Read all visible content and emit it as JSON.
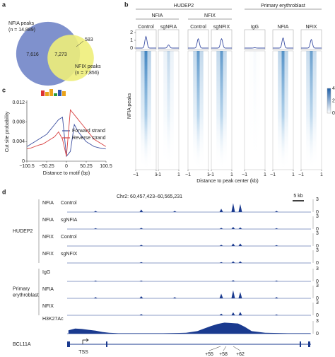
{
  "chart_data": [
    {
      "type": "venn",
      "panel_label": "a",
      "sets": [
        {
          "name": "NFIA peaks",
          "n": 14889,
          "n_label": "(n = 14,889)",
          "color": "#7f91cd"
        },
        {
          "name": "NFIX peaks",
          "n": 7856,
          "n_label": "(n = 7,856)",
          "color": "#eeee7a"
        }
      ],
      "values": [
        7616,
        7273,
        583
      ],
      "value_labels": [
        "7,616",
        "7,273",
        "583"
      ]
    },
    {
      "type": "heatmap_profile",
      "panel_label": "b",
      "groups": [
        {
          "name": "HUDEP2",
          "subgroups": [
            {
              "name": "NFIA",
              "columns": [
                {
                  "name": "Control",
                  "peak": 1.5
                },
                {
                  "name": "sgNFIA",
                  "peak": 0.4
                }
              ]
            },
            {
              "name": "NFIX",
              "columns": [
                {
                  "name": "Control",
                  "peak": 1.2
                },
                {
                  "name": "sgNFIX",
                  "peak": 1.2
                }
              ]
            }
          ]
        },
        {
          "name": "Primary erythroblast",
          "subgroups": [
            {
              "columns": [
                {
                  "name": "IgG",
                  "peak": 0.05
                },
                {
                  "name": "NFIA",
                  "peak": 1.3
                },
                {
                  "name": "NFIX",
                  "peak": 1.1
                }
              ]
            }
          ]
        }
      ],
      "ylim": [
        0,
        2
      ],
      "yticks": [
        0,
        1,
        2
      ],
      "xlim": [
        -1,
        1
      ],
      "xticks": [
        {
          "value": -1,
          "label": "−1"
        },
        1
      ],
      "ylabel": "NFIA peaks",
      "xlabel": "Distance to peak center (kb)",
      "color": "#1f6fb5",
      "clim": [
        0,
        4
      ],
      "colorbar_ticks": [
        4,
        2,
        0
      ]
    },
    {
      "type": "line",
      "panel_label": "c",
      "xlabel": "Distance to motif (bp)",
      "ylabel": "Cut site probability",
      "x": [
        -100,
        -90,
        -80,
        -70,
        -60,
        -50,
        -40,
        -30,
        -20,
        -10,
        0,
        10,
        20,
        30,
        40,
        50,
        60,
        70,
        80,
        90,
        100
      ],
      "xlim": [
        -100.5,
        100.5
      ],
      "xticks": [
        {
          "value": -100.5,
          "label": "−100.5"
        },
        {
          "value": -50.25,
          "label": "−50.25"
        },
        0,
        50.25,
        100.5
      ],
      "ylim": [
        0,
        0.012
      ],
      "yticks": [
        0,
        0.004,
        0.008,
        0.012
      ],
      "legend": "right",
      "series": [
        {
          "name": "Forward strand",
          "color": "#3c4fa0",
          "values": [
            0.003,
            0.0035,
            0.004,
            0.0045,
            0.005,
            0.0055,
            0.0065,
            0.0075,
            0.0085,
            0.009,
            0.001,
            0.002,
            0.0075,
            0.006,
            0.005,
            0.004,
            0.0035,
            0.003,
            0.0028,
            0.0026,
            0.0025
          ]
        },
        {
          "name": "Reverse strand",
          "color": "#d84040",
          "values": [
            0.0025,
            0.0027,
            0.003,
            0.0033,
            0.0035,
            0.004,
            0.0045,
            0.005,
            0.006,
            0.0045,
            0.001,
            0.0105,
            0.0095,
            0.0085,
            0.0075,
            0.0065,
            0.0055,
            0.0045,
            0.004,
            0.0035,
            0.003
          ]
        }
      ]
    },
    {
      "type": "genome_tracks",
      "panel_label": "d",
      "region": "Chr2: 60,457,423–60,565,231",
      "xlim": [
        60457423,
        60565231
      ],
      "scale_bar": {
        "label": "5 kb",
        "length": 5000
      },
      "color": "#1a3a8f",
      "groups": [
        {
          "label_lines": [
            "HUDEP2"
          ],
          "tracks": [
            {
              "name": "NFIA",
              "condition": "Control",
              "style": "spikes",
              "ylim": [
                0,
                3
              ],
              "yticks": [
                0,
                3
              ],
              "x": [
                60470000,
                60490200,
                60505000,
                60525560,
                60530840,
                60533970,
                60550000
              ],
              "values": [
                0.3,
                0.6,
                0.3,
                0.8,
                2.1,
                1.9,
                0.3
              ]
            },
            {
              "name": "NFIA",
              "condition": "sgNFIA",
              "style": "spikes",
              "ylim": [
                0,
                3
              ],
              "yticks": [
                0,
                3
              ],
              "x": [
                60470000,
                60490200,
                60525560,
                60530840,
                60533970,
                60550000
              ],
              "values": [
                0.2,
                0.3,
                0.3,
                0.5,
                0.4,
                0.2
              ]
            },
            {
              "name": "NFIX",
              "condition": "Control",
              "style": "spikes",
              "ylim": [
                0,
                3
              ],
              "yticks": [
                0,
                3
              ],
              "x": [
                60490200,
                60525560,
                60530840,
                60533970,
                60550000
              ],
              "values": [
                0.3,
                0.3,
                0.6,
                0.6,
                0.2
              ]
            },
            {
              "name": "NFIX",
              "condition": "sgNFIX",
              "style": "spikes",
              "ylim": [
                0,
                3
              ],
              "yticks": [
                0,
                3
              ],
              "x": [
                60490200,
                60525560,
                60530840,
                60533970
              ],
              "values": [
                0.2,
                0.2,
                0.4,
                0.4
              ]
            }
          ]
        },
        {
          "label_lines": [
            "Primary",
            "erythroblast"
          ],
          "tracks": [
            {
              "name": "IgG",
              "style": "spikes",
              "ylim": [
                0,
                3
              ],
              "yticks": [
                0,
                3
              ],
              "x": [
                60470000,
                60490200,
                60530840,
                60550000
              ],
              "values": [
                0.2,
                0.2,
                0.3,
                0.2
              ]
            },
            {
              "name": "NFIA",
              "style": "spikes",
              "ylim": [
                0,
                3
              ],
              "yticks": [
                0,
                3
              ],
              "x": [
                60470000,
                60490200,
                60505000,
                60525560,
                60530840,
                60533970,
                60550000
              ],
              "values": [
                0.3,
                0.5,
                0.3,
                1.1,
                1.9,
                1.5,
                0.3
              ]
            },
            {
              "name": "NFIX",
              "style": "spikes",
              "ylim": [
                0,
                3
              ],
              "yticks": [
                0,
                3
              ],
              "x": [
                60490200,
                60525560,
                60530840,
                60533970,
                60550000
              ],
              "values": [
                0.3,
                0.4,
                0.7,
                0.8,
                0.2
              ]
            }
          ]
        },
        {
          "tracks": [
            {
              "name": "H3K27Ac",
              "style": "area",
              "ylim": [
                0,
                3
              ],
              "yticks": [
                0,
                3
              ],
              "x": [
                60458000,
                60461000,
                60464000,
                60467000,
                60470000,
                60473000,
                60476000,
                60480000,
                60490000,
                60500000,
                60510000,
                60515000,
                60518000,
                60521000,
                60524000,
                60527000,
                60530000,
                60533000,
                60536000,
                60539000,
                60545000,
                60555000,
                60565000
              ],
              "values": [
                0.8,
                1.2,
                1.1,
                0.9,
                0.7,
                0.4,
                0.2,
                0.1,
                0.1,
                0.1,
                0.2,
                0.6,
                1.2,
                1.8,
                2.3,
                2.6,
                2.5,
                2.4,
                1.6,
                0.6,
                0.2,
                0.1,
                0.1
              ]
            }
          ]
        }
      ],
      "gene": "BCL11A",
      "tss": "TSS",
      "enhancers": [
        "+55",
        "+58",
        "+62"
      ]
    }
  ]
}
